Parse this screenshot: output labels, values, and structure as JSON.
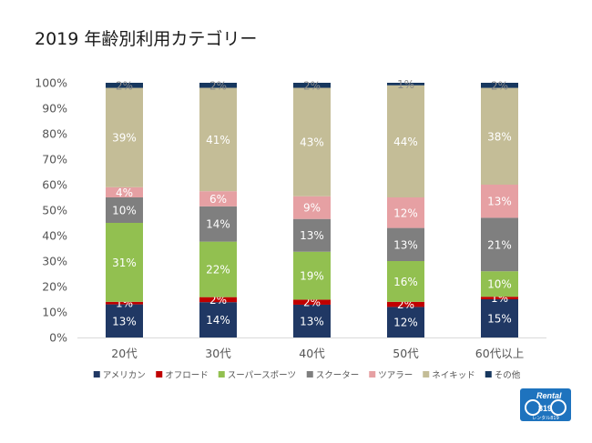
{
  "title": "2019 年齢別利用カテゴリー",
  "logo": {
    "line1": "Rental",
    "line2": "819",
    "line3": "レンタル819"
  },
  "chart_data": {
    "type": "bar",
    "stacked": true,
    "percent": true,
    "categories": [
      "20代",
      "30代",
      "40代",
      "50代",
      "60代以上"
    ],
    "yticks": [
      "0%",
      "10%",
      "20%",
      "30%",
      "40%",
      "50%",
      "60%",
      "70%",
      "80%",
      "90%",
      "100%"
    ],
    "ylim": [
      0,
      100
    ],
    "grid": false,
    "legend_position": "bottom",
    "series": [
      {
        "name": "アメリカン",
        "color": "#203864",
        "label_color": "#ffffff",
        "values": [
          13,
          14,
          13,
          12,
          15
        ],
        "labels": [
          "13%",
          "14%",
          "13%",
          "12%",
          "15%"
        ]
      },
      {
        "name": "オフロード",
        "color": "#c00000",
        "label_color": "#ffffff",
        "values": [
          1,
          2,
          2,
          2,
          1
        ],
        "labels": [
          "1%",
          "2%",
          "2%",
          "2%",
          "1%"
        ]
      },
      {
        "name": "スーパースポーツ",
        "color": "#92c050",
        "label_color": "#ffffff",
        "values": [
          31,
          22,
          19,
          16,
          10
        ],
        "labels": [
          "31%",
          "22%",
          "19%",
          "16%",
          "10%"
        ]
      },
      {
        "name": "スクーター",
        "color": "#7f7f7f",
        "label_color": "#ffffff",
        "values": [
          10,
          14,
          13,
          13,
          21
        ],
        "labels": [
          "10%",
          "14%",
          "13%",
          "13%",
          "21%"
        ]
      },
      {
        "name": "ツアラー",
        "color": "#e6a0a3",
        "label_color": "#ffffff",
        "values": [
          4,
          6,
          9,
          12,
          13
        ],
        "labels": [
          "4%",
          "6%",
          "9%",
          "12%",
          "13%"
        ]
      },
      {
        "name": "ネイキッド",
        "color": "#c4bd97",
        "label_color": "#ffffff",
        "values": [
          39,
          41,
          43,
          44,
          38
        ],
        "labels": [
          "39%",
          "41%",
          "43%",
          "44%",
          "38%"
        ]
      },
      {
        "name": "その他",
        "color": "#17375e",
        "label_color": "#8a8a8a",
        "values": [
          2,
          2,
          2,
          1,
          2
        ],
        "labels": [
          "2%",
          "2%",
          "2%",
          "1%",
          "2%"
        ]
      }
    ]
  }
}
